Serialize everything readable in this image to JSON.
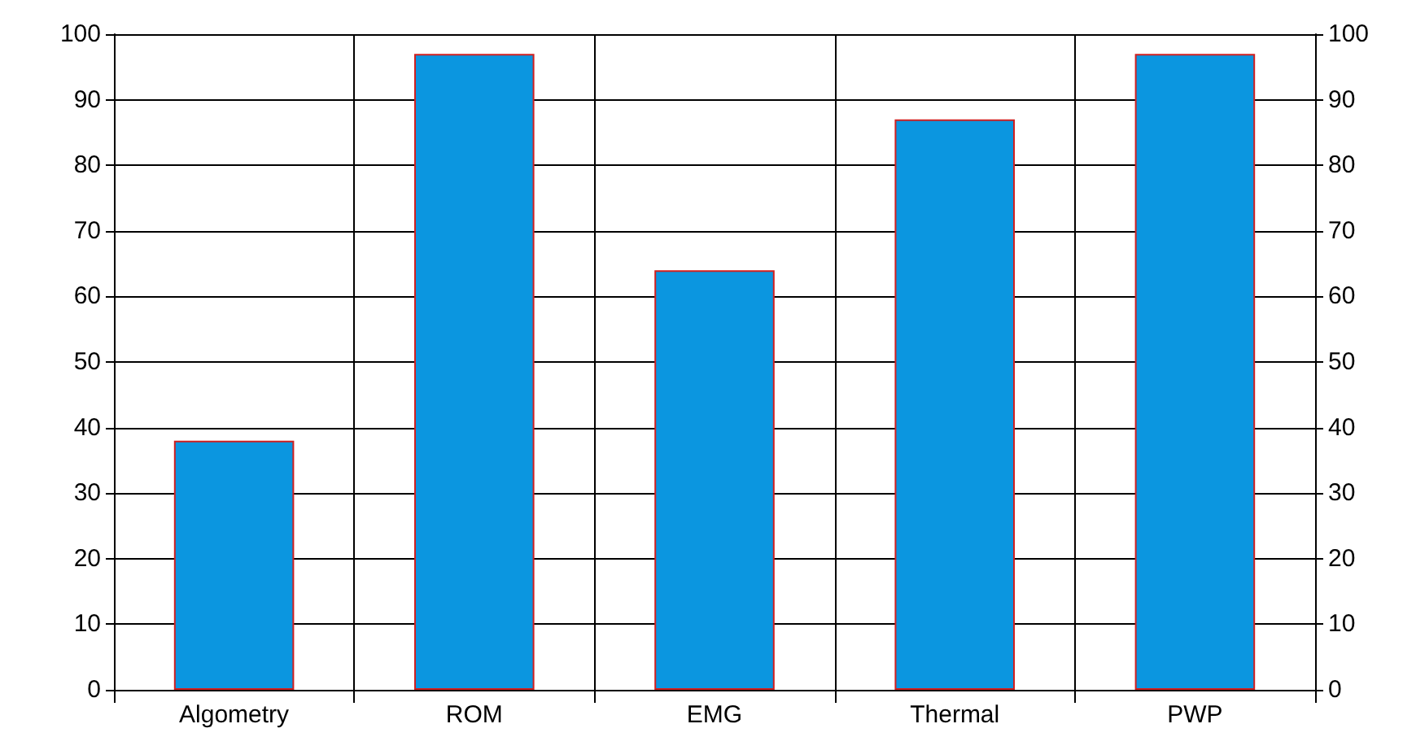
{
  "chart_data": {
    "type": "bar",
    "categories": [
      "Algometry",
      "ROM",
      "EMG",
      "Thermal",
      "PWP"
    ],
    "values": [
      38,
      97,
      64,
      87,
      97
    ],
    "color": "#0b96e0",
    "ylim": [
      0,
      100
    ],
    "yticks": [
      0,
      10,
      20,
      30,
      40,
      50,
      60,
      70,
      80,
      90,
      100
    ],
    "y2lim": [
      0,
      100
    ],
    "y2ticks": [
      0,
      10,
      20,
      30,
      40,
      50,
      60,
      70,
      80,
      90,
      100
    ],
    "grid": true
  }
}
